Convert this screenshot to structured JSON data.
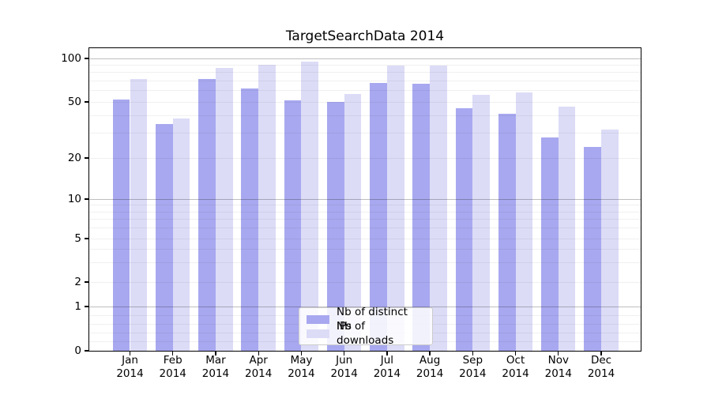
{
  "chart_data": {
    "type": "bar",
    "title": "TargetSearchData 2014",
    "categories": [
      "Jan",
      "Feb",
      "Mar",
      "Apr",
      "May",
      "Jun",
      "Jul",
      "Aug",
      "Sep",
      "Oct",
      "Nov",
      "Dec"
    ],
    "year_label": "2014",
    "series": [
      {
        "name": "Nb of distinct IPs",
        "color": "#a8a8f0",
        "values": [
          52,
          35,
          72,
          62,
          51,
          50,
          68,
          67,
          45,
          41,
          28,
          24
        ]
      },
      {
        "name": "Nb of downloads",
        "color": "#dcdcf7",
        "values": [
          72,
          38,
          86,
          90,
          95,
          57,
          89,
          89,
          56,
          58,
          46,
          32
        ]
      }
    ],
    "yscale": "symlog",
    "ylim": [
      0,
      110
    ],
    "yticks": [
      0,
      1,
      2,
      5,
      10,
      20,
      50,
      100
    ],
    "y_major_gridlines": [
      1,
      10,
      100
    ],
    "y_minor_gridlines": [
      0.2,
      0.4,
      0.6,
      0.8,
      2,
      3,
      4,
      5,
      6,
      7,
      8,
      9,
      20,
      30,
      40,
      50,
      60,
      70,
      80,
      90
    ],
    "grid": "on",
    "legend_position": "lower center"
  }
}
